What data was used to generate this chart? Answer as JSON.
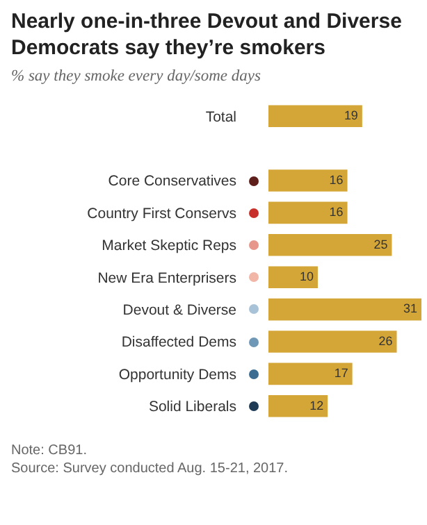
{
  "chart_data": {
    "type": "bar",
    "orientation": "horizontal",
    "title": "Nearly one-in-three Devout and Diverse Democrats say they’re smokers",
    "subtitle": "% say they smoke every day/some days",
    "categories": [
      "Total",
      null,
      "Core Conservatives",
      "Country First Conservs",
      "Market Skeptic Reps",
      "New Era Enterprisers",
      "Devout & Diverse",
      "Disaffected Dems",
      "Opportunity Dems",
      "Solid Liberals"
    ],
    "values": [
      19,
      null,
      16,
      16,
      25,
      10,
      31,
      26,
      17,
      12
    ],
    "color": "#d4a637",
    "data_labels": true,
    "grid": false,
    "legend": false,
    "annotations": [
      "Note: CB91.",
      "Source: Survey conducted Aug. 15-21, 2017."
    ]
  }
}
